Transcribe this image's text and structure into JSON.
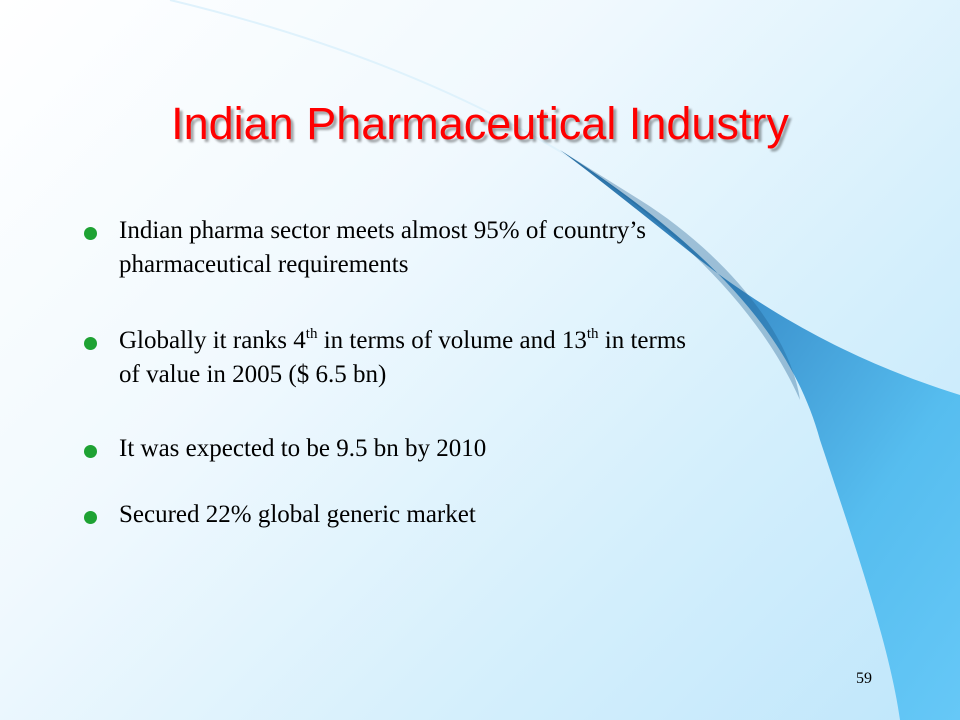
{
  "slide": {
    "title": "Indian Pharmaceutical Industry",
    "bullets": [
      {
        "line1": "Indian pharma sector meets almost 95% of country’s",
        "line2": "pharmaceutical requirements"
      },
      {
        "p1": "Globally it ranks 4",
        "sup1": "th",
        "p2": " in terms of volume and 13",
        "sup2": "th",
        "p3": " in terms",
        "line2": "of value in 2005 ($ 6.5 bn)"
      },
      {
        "text": "It was expected to be  9.5 bn by 2010"
      },
      {
        "text": "Secured 22% global generic market"
      }
    ],
    "page_number": "59"
  },
  "colors": {
    "title": "#ff0000",
    "bullet": "#1ea233",
    "swoosh_dark": "#2b7fb8",
    "swoosh_light": "#55bff0"
  }
}
